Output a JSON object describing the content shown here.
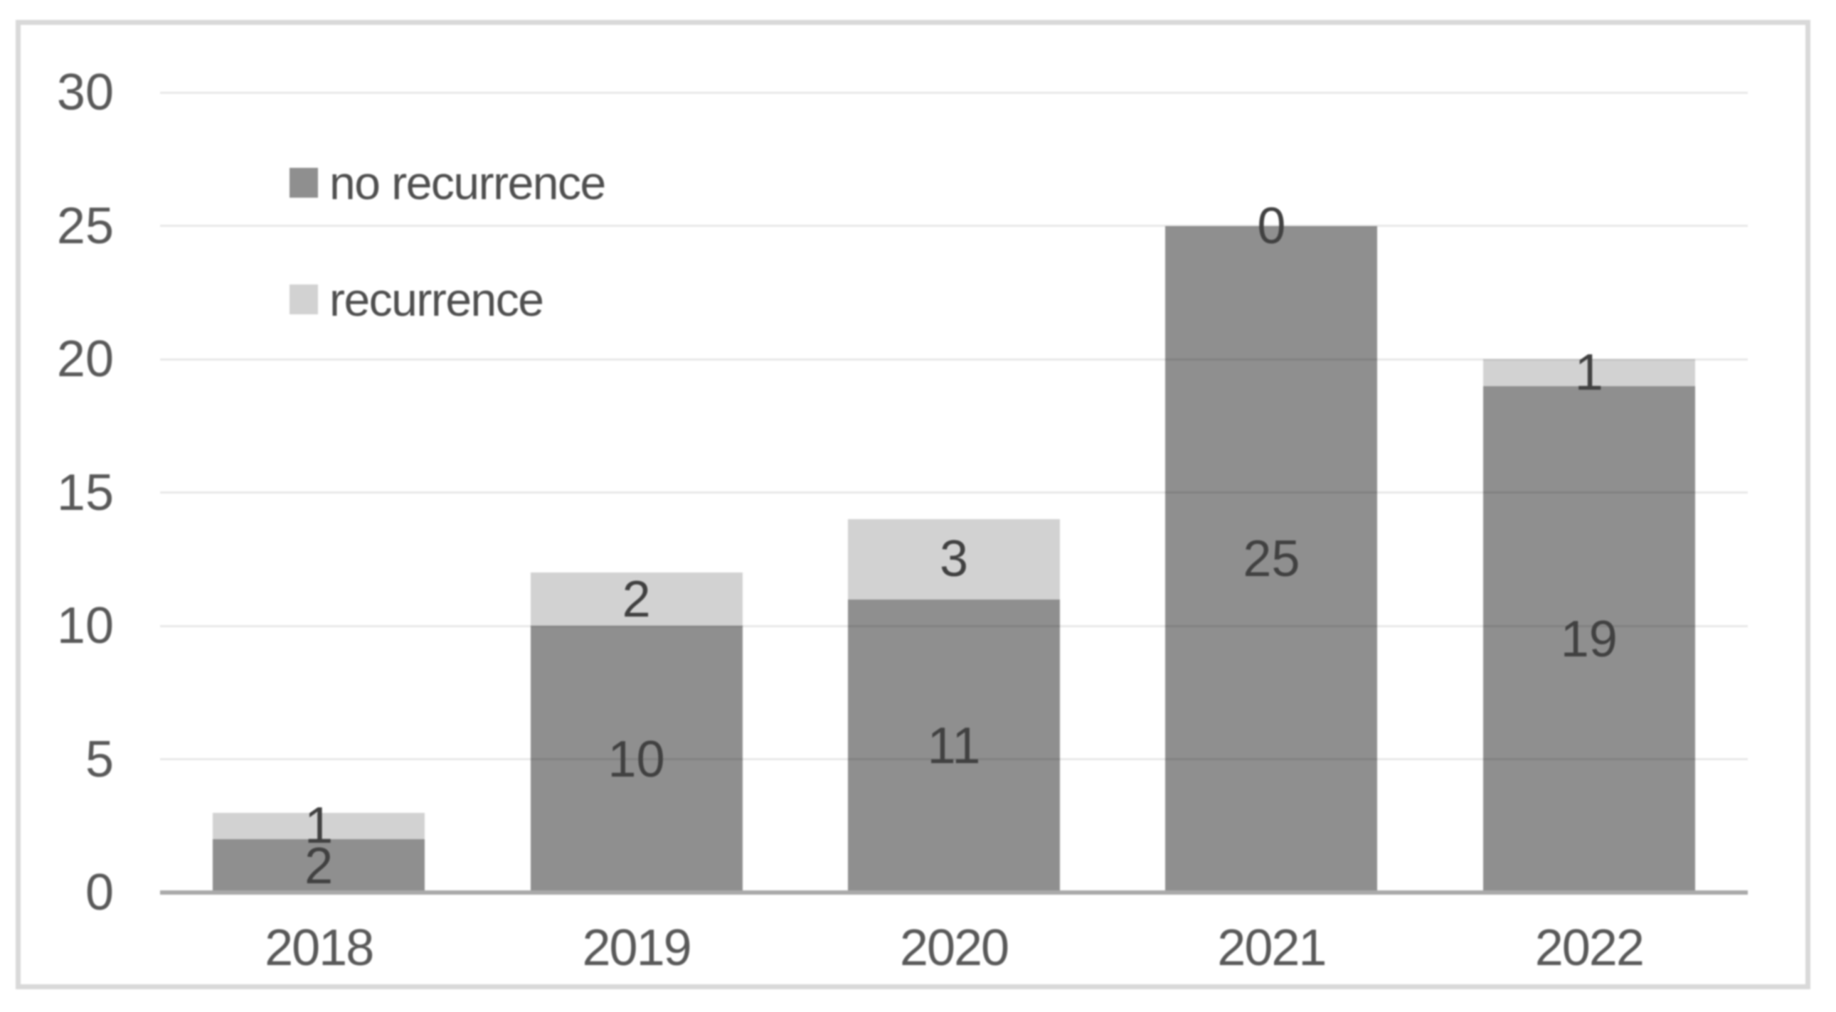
{
  "chart_data": {
    "type": "bar",
    "stacked": true,
    "title": "",
    "xlabel": "",
    "ylabel": "",
    "categories": [
      "2018",
      "2019",
      "2020",
      "2021",
      "2022"
    ],
    "series": [
      {
        "name": "no recurrence",
        "color": "#8f8f8f",
        "values": [
          2,
          10,
          11,
          25,
          19
        ]
      },
      {
        "name": "recurrence",
        "color": "#d2d2d2",
        "values": [
          1,
          2,
          3,
          0,
          1
        ]
      }
    ],
    "ylim": [
      0,
      30
    ],
    "y_ticks": [
      0,
      5,
      10,
      15,
      20,
      25,
      30
    ],
    "grid": true,
    "gridlines_over_bars": true,
    "legend_position": "inside-top-left",
    "data_labels": "center"
  },
  "frame": {
    "border_color": "#d9d9d9",
    "background": "#ffffff"
  },
  "styles": {
    "axis_text_color": "#595959",
    "data_label_color": "#414141",
    "legend_text_color": "#4f4f4f",
    "gridline_color": "#e8e8e8",
    "baseline_color": "#a9a9a9"
  }
}
